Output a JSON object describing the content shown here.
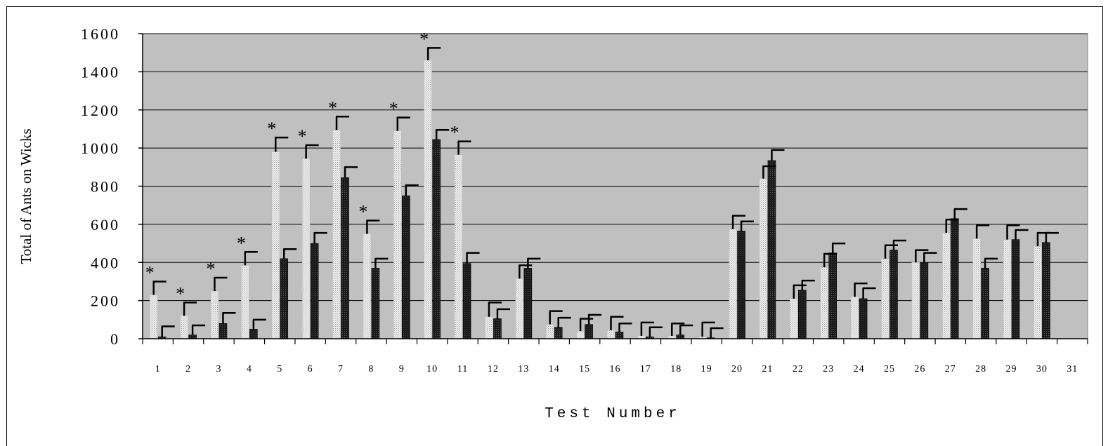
{
  "chart_data": {
    "type": "bar",
    "title": "",
    "xlabel": "Test Number",
    "ylabel": "Total of Ants on Wicks",
    "ylim": [
      0,
      1600
    ],
    "yticks": [
      0,
      200,
      400,
      600,
      800,
      1000,
      1200,
      1400,
      1600
    ],
    "categories": [
      "1",
      "2",
      "3",
      "4",
      "5",
      "6",
      "7",
      "8",
      "9",
      "10",
      "11",
      "12",
      "13",
      "14",
      "15",
      "16",
      "17",
      "18",
      "19",
      "20",
      "21",
      "22",
      "23",
      "24",
      "25",
      "26",
      "27",
      "28",
      "29",
      "30",
      "31"
    ],
    "grid": true,
    "series": [
      {
        "values": [
          230,
          120,
          250,
          385,
          980,
          945,
          1095,
          550,
          1090,
          1460,
          965,
          115,
          315,
          75,
          40,
          45,
          15,
          15,
          10,
          575,
          840,
          210,
          375,
          220,
          420,
          400,
          555,
          525,
          520,
          485,
          null
        ],
        "errors": [
          70,
          70,
          70,
          70,
          75,
          70,
          70,
          70,
          70,
          65,
          70,
          75,
          70,
          70,
          65,
          70,
          70,
          65,
          75,
          70,
          65,
          70,
          70,
          70,
          70,
          65,
          70,
          70,
          75,
          70,
          null
        ],
        "color": "#e6e6e6"
      },
      {
        "values": [
          10,
          20,
          80,
          50,
          420,
          500,
          845,
          370,
          750,
          1045,
          395,
          105,
          370,
          60,
          75,
          35,
          10,
          20,
          5,
          565,
          935,
          255,
          450,
          210,
          465,
          400,
          630,
          370,
          520,
          505,
          null
        ],
        "errors": [
          55,
          50,
          55,
          50,
          50,
          55,
          55,
          50,
          55,
          50,
          55,
          50,
          50,
          50,
          50,
          45,
          50,
          50,
          50,
          50,
          55,
          50,
          50,
          55,
          50,
          50,
          50,
          50,
          50,
          50,
          null
        ],
        "color": "#1c1c1c"
      }
    ],
    "significance_marker": "*",
    "significant_tests": [
      "1",
      "2",
      "3",
      "4",
      "5",
      "6",
      "7",
      "8",
      "9",
      "10",
      "11"
    ]
  }
}
